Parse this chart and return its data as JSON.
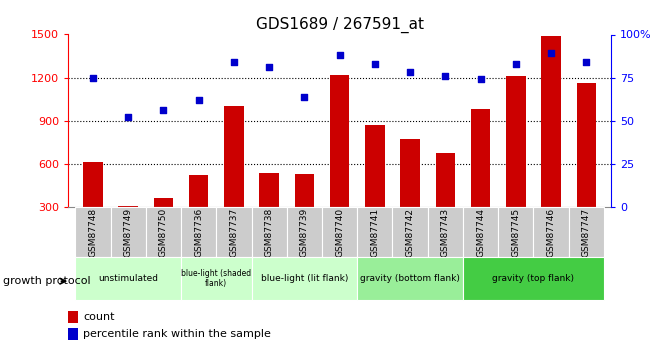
{
  "title": "GDS1689 / 267591_at",
  "samples": [
    "GSM87748",
    "GSM87749",
    "GSM87750",
    "GSM87736",
    "GSM87737",
    "GSM87738",
    "GSM87739",
    "GSM87740",
    "GSM87741",
    "GSM87742",
    "GSM87743",
    "GSM87744",
    "GSM87745",
    "GSM87746",
    "GSM87747"
  ],
  "counts": [
    610,
    305,
    360,
    520,
    1000,
    540,
    530,
    1215,
    870,
    770,
    675,
    985,
    1210,
    1490,
    1165
  ],
  "percentiles": [
    75,
    52,
    56,
    62,
    84,
    81,
    64,
    88,
    83,
    78,
    76,
    74,
    83,
    89,
    84
  ],
  "bar_color": "#cc0000",
  "dot_color": "#0000cc",
  "ylim_left": [
    300,
    1500
  ],
  "ylim_right": [
    0,
    100
  ],
  "yticks_left": [
    300,
    600,
    900,
    1200,
    1500
  ],
  "yticks_right": [
    0,
    25,
    50,
    75,
    100
  ],
  "ytick_labels_right": [
    "0",
    "25",
    "50",
    "75",
    "100%"
  ],
  "grid_values": [
    600,
    900,
    1200
  ],
  "groups": [
    {
      "label": "unstimulated",
      "start": 0,
      "end": 3,
      "color": "#ccffcc"
    },
    {
      "label": "blue-light (shaded\nflank)",
      "start": 3,
      "end": 5,
      "color": "#ccffcc"
    },
    {
      "label": "blue-light (lit flank)",
      "start": 5,
      "end": 8,
      "color": "#ccffcc"
    },
    {
      "label": "gravity (bottom flank)",
      "start": 8,
      "end": 11,
      "color": "#99ee99"
    },
    {
      "label": "gravity (top flank)",
      "start": 11,
      "end": 15,
      "color": "#44cc44"
    }
  ],
  "legend_count_label": "count",
  "legend_pct_label": "percentile rank within the sample",
  "growth_protocol_label": "growth protocol",
  "bg_color_samples": "#cccccc",
  "bg_color_plot": "#ffffff"
}
